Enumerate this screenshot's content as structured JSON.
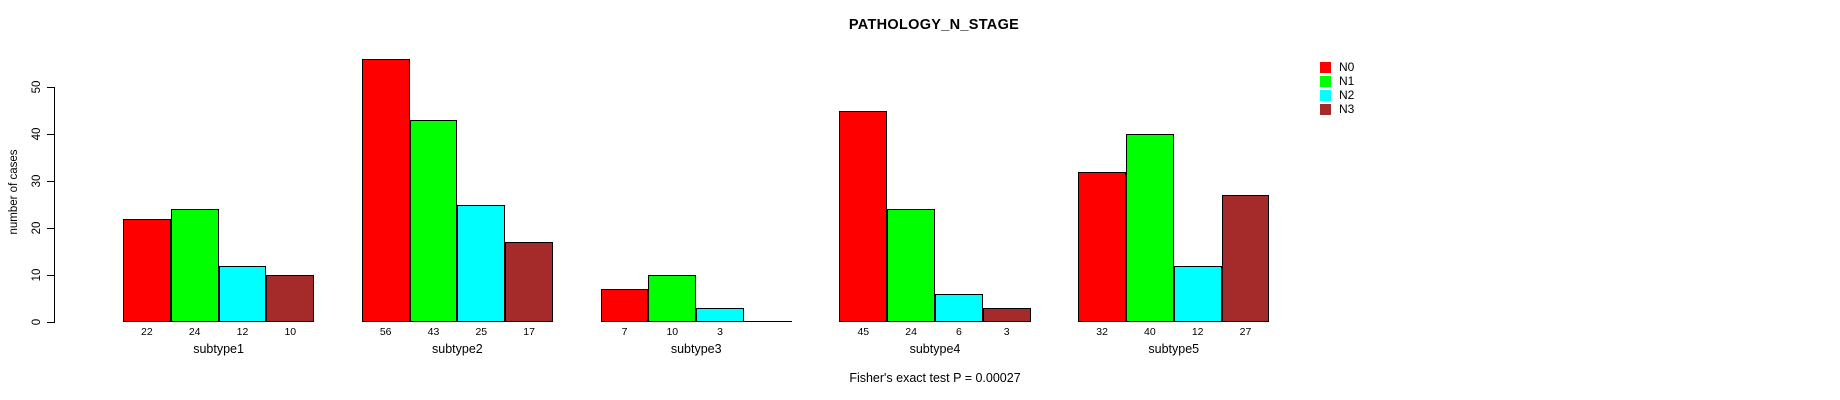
{
  "chart_data": {
    "type": "bar",
    "title": "PATHOLOGY_N_STAGE",
    "xlabel": "",
    "ylabel": "number of cases",
    "ylim": [
      0,
      56
    ],
    "yticks": [
      0,
      10,
      20,
      30,
      40,
      50
    ],
    "grid": false,
    "legend_position": "right",
    "bar_value_labels_shown": true,
    "categories": [
      "subtype1",
      "subtype2",
      "subtype3",
      "subtype4",
      "subtype5"
    ],
    "series": [
      {
        "name": "N0",
        "color": "#FF0000",
        "values": [
          22,
          56,
          7,
          45,
          32
        ]
      },
      {
        "name": "N1",
        "color": "#00FF00",
        "values": [
          24,
          43,
          10,
          24,
          40
        ]
      },
      {
        "name": "N2",
        "color": "#00FFFF",
        "values": [
          12,
          25,
          3,
          6,
          12
        ]
      },
      {
        "name": "N3",
        "color": "#A52A2A",
        "values": [
          10,
          17,
          0,
          3,
          27
        ]
      }
    ],
    "annotation": "Fisher's exact test P = 0.00027"
  },
  "colors": {
    "axis": "#000000",
    "text": "#000000",
    "background": "#FFFFFF"
  }
}
